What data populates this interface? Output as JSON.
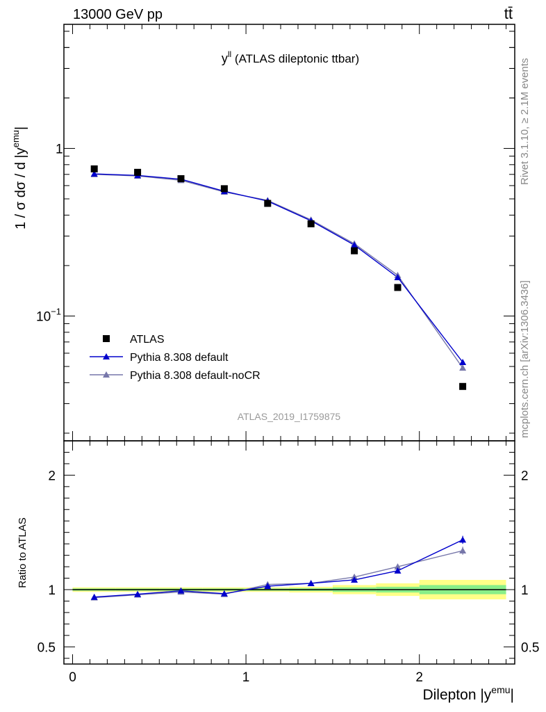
{
  "header": {
    "energy_label": "13000 GeV pp",
    "process_label": "tt̄"
  },
  "side_labels": {
    "rivet": "Rivet 3.1.10, ≥ 2.1M events",
    "source": "mcplots.cern.ch [arXiv:1306.3436]"
  },
  "chart_data": [
    {
      "type": "scatter",
      "panel": "main",
      "title": "y^ll (ATLAS dileptonic ttbar)",
      "title_main": "y",
      "title_sup": "ll",
      "title_rest": " (ATLAS dileptonic ttbar)",
      "watermark": "ATLAS_2019_I1759875",
      "ylabel": "1 / σ  dσ / d |y^emu|",
      "ylabel_main": "1 / σ  dσ / d |y",
      "ylabel_sup": "emu",
      "ylabel_end": "|",
      "yscale": "log",
      "ylim": [
        0.018,
        5.5
      ],
      "xlim": [
        -0.05,
        2.55
      ],
      "yticks": [
        {
          "value": 1,
          "label": "1"
        },
        {
          "value": 0.1,
          "label": "10",
          "sup": "−1"
        }
      ],
      "legend_position": "left-lower",
      "x": [
        0.125,
        0.375,
        0.625,
        0.875,
        1.125,
        1.375,
        1.625,
        1.875,
        2.25
      ],
      "series": [
        {
          "name": "ATLAS",
          "color": "#000000",
          "marker": "square",
          "values": [
            0.755,
            0.72,
            0.66,
            0.575,
            0.47,
            0.355,
            0.245,
            0.148,
            0.038
          ]
        },
        {
          "name": "Pythia 8.308 default",
          "color": "#0000cc",
          "marker": "triangle",
          "values": [
            0.705,
            0.69,
            0.655,
            0.555,
            0.485,
            0.37,
            0.265,
            0.17,
            0.053
          ]
        },
        {
          "name": "Pythia 8.308 default-noCR",
          "color": "#7777aa",
          "marker": "triangle",
          "values": [
            0.7,
            0.685,
            0.645,
            0.55,
            0.49,
            0.375,
            0.27,
            0.175,
            0.049
          ]
        }
      ]
    },
    {
      "type": "line",
      "panel": "ratio",
      "ylabel": "Ratio to ATLAS",
      "xlabel": "Dilepton |y^emu|",
      "xlabel_main": "Dilepton |y",
      "xlabel_sup": "emu",
      "xlabel_end": "|",
      "ylim": [
        0.35,
        2.3
      ],
      "xlim": [
        -0.05,
        2.55
      ],
      "yticks": [
        {
          "value": 0.5,
          "label": "0.5"
        },
        {
          "value": 1,
          "label": "1"
        },
        {
          "value": 2,
          "label": "2"
        }
      ],
      "xticks": [
        {
          "value": 0,
          "label": "0"
        },
        {
          "value": 1,
          "label": "1"
        },
        {
          "value": 2,
          "label": "2"
        }
      ],
      "x": [
        0.125,
        0.375,
        0.625,
        0.875,
        1.125,
        1.375,
        1.625,
        1.875,
        2.25
      ],
      "bands": [
        {
          "x0": 0,
          "x1": 0.25,
          "green": 0.01,
          "yellow": 0.02
        },
        {
          "x0": 0.25,
          "x1": 0.5,
          "green": 0.01,
          "yellow": 0.02
        },
        {
          "x0": 0.5,
          "x1": 0.75,
          "green": 0.01,
          "yellow": 0.02
        },
        {
          "x0": 0.75,
          "x1": 1.0,
          "green": 0.01,
          "yellow": 0.02
        },
        {
          "x0": 1.0,
          "x1": 1.25,
          "green": 0.01,
          "yellow": 0.02
        },
        {
          "x0": 1.25,
          "x1": 1.5,
          "green": 0.012,
          "yellow": 0.025
        },
        {
          "x0": 1.5,
          "x1": 1.75,
          "green": 0.02,
          "yellow": 0.04
        },
        {
          "x0": 1.75,
          "x1": 2.0,
          "green": 0.025,
          "yellow": 0.055
        },
        {
          "x0": 2.0,
          "x1": 2.5,
          "green": 0.04,
          "yellow": 0.085
        }
      ],
      "series": [
        {
          "name": "Pythia 8.308 default",
          "color": "#0000cc",
          "values": [
            0.935,
            0.96,
            0.99,
            0.965,
            1.03,
            1.055,
            1.085,
            1.165,
            1.435
          ],
          "errors": [
            0.005,
            0.005,
            0.005,
            0.005,
            0.006,
            0.007,
            0.01,
            0.015,
            0.035
          ]
        },
        {
          "name": "Pythia 8.308 default-noCR",
          "color": "#7777aa",
          "values": [
            0.93,
            0.955,
            0.98,
            0.96,
            1.045,
            1.055,
            1.11,
            1.2,
            1.34
          ],
          "errors": [
            0.005,
            0.005,
            0.005,
            0.005,
            0.006,
            0.007,
            0.01,
            0.015,
            0.035
          ]
        }
      ]
    }
  ]
}
